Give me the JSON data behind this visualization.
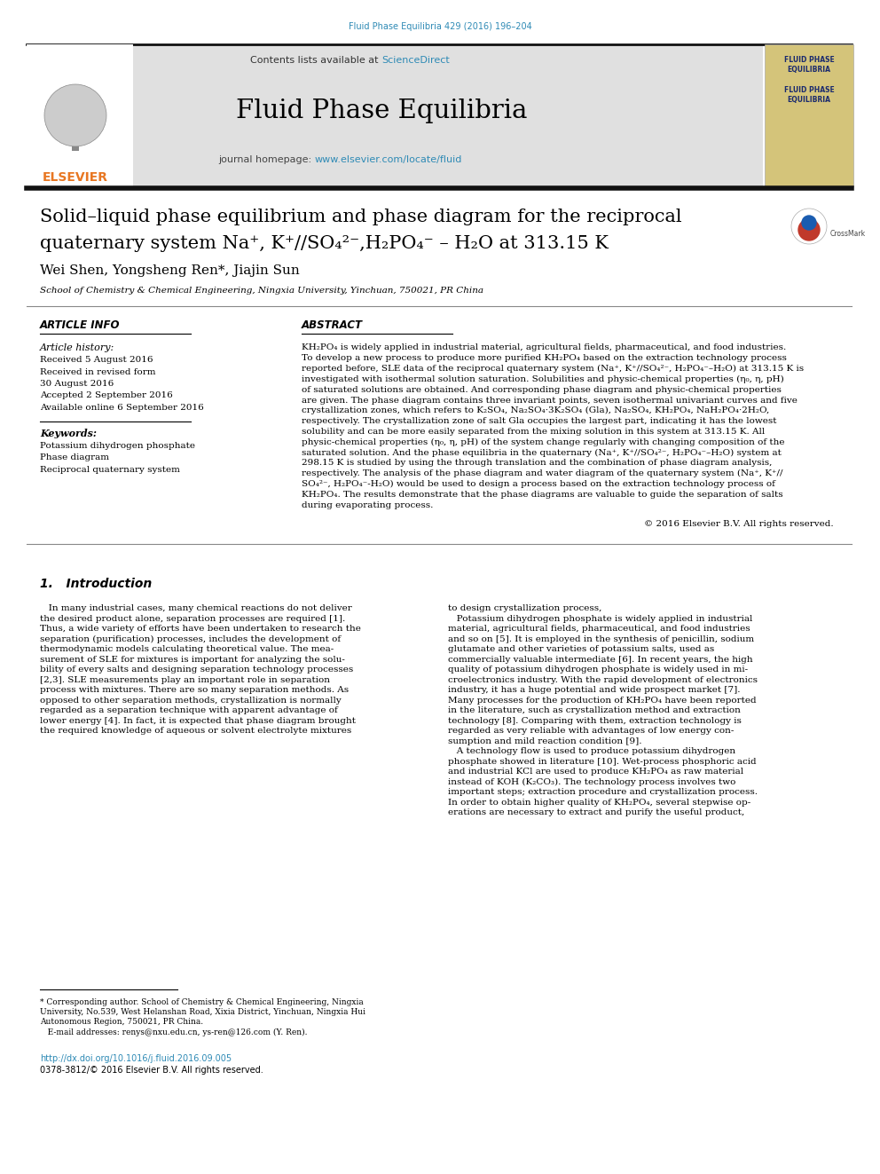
{
  "page_bg": "#ffffff",
  "header_citation": "Fluid Phase Equilibria 429 (2016) 196–204",
  "header_citation_color": "#2e8ab5",
  "journal_name": "Fluid Phase Equilibria",
  "homepage_url_color": "#2e8ab5",
  "sciencedirect_color": "#2e8ab5",
  "header_bg": "#e0e0e0",
  "elsevier_color": "#e87722",
  "right_logo_bg": "#d4c47a",
  "right_logo_border": "#aaaaaa",
  "right_logo_text_color": "#1a2a6e",
  "title_line1": "Solid–liquid phase equilibrium and phase diagram for the reciprocal",
  "title_line2": "quaternary system Na⁺, K⁺//SO₄²⁻,H₂PO₄⁻ – H₂O at 313.15 K",
  "authors": "Wei Shen, Yongsheng Ren*, Jiajin Sun",
  "affiliation": "School of Chemistry & Chemical Engineering, Ningxia University, Yinchuan, 750021, PR China",
  "article_info_header": "ARTICLE INFO",
  "abstract_header": "ABSTRACT",
  "article_history_label": "Article history:",
  "received1": "Received 5 August 2016",
  "received2": "Received in revised form",
  "received2b": "30 August 2016",
  "accepted": "Accepted 2 September 2016",
  "available": "Available online 6 September 2016",
  "keywords_label": "Keywords:",
  "keyword1": "Potassium dihydrogen phosphate",
  "keyword2": "Phase diagram",
  "keyword3": "Reciprocal quaternary system",
  "copyright_text": "© 2016 Elsevier B.V. All rights reserved.",
  "intro_heading": "1.   Introduction",
  "doi_text": "http://dx.doi.org/10.1016/j.fluid.2016.09.005",
  "issn_text": "0378-3812/© 2016 Elsevier B.V. All rights reserved.",
  "doi_color": "#2e8ab5",
  "separator_color": "#1a1a1a",
  "text_color": "#000000",
  "abstract_lines": [
    "KH₂PO₄ is widely applied in industrial material, agricultural fields, pharmaceutical, and food industries.",
    "To develop a new process to produce more purified KH₂PO₄ based on the extraction technology process",
    "reported before, SLE data of the reciprocal quaternary system (Na⁺, K⁺//SO₄²⁻, H₂PO₄⁻–H₂O) at 313.15 K is",
    "investigated with isothermal solution saturation. Solubilities and physic-chemical properties (η₀, η, pH)",
    "of saturated solutions are obtained. And corresponding phase diagram and physic-chemical properties",
    "are given. The phase diagram contains three invariant points, seven isothermal univariant curves and five",
    "crystallization zones, which refers to K₂SO₄, Na₂SO₄·3K₂SO₄ (Gla), Na₂SO₄, KH₂PO₄, NaH₂PO₄·2H₂O,",
    "respectively. The crystallization zone of salt Gla occupies the largest part, indicating it has the lowest",
    "solubility and can be more easily separated from the mixing solution in this system at 313.15 K. All",
    "physic-chemical properties (η₀, η, pH) of the system change regularly with changing composition of the",
    "saturated solution. And the phase equilibria in the quaternary (Na⁺, K⁺//SO₄²⁻, H₂PO₄⁻–H₂O) system at",
    "298.15 K is studied by using the through translation and the combination of phase diagram analysis,",
    "respectively. The analysis of the phase diagram and water diagram of the quaternary system (Na⁺, K⁺//",
    "SO₄²⁻, H₂PO₄⁻-H₂O) would be used to design a process based on the extraction technology process of",
    "KH₂PO₄. The results demonstrate that the phase diagrams are valuable to guide the separation of salts",
    "during evaporating process."
  ],
  "intro_col1": [
    "   In many industrial cases, many chemical reactions do not deliver",
    "the desired product alone, separation processes are required [1].",
    "Thus, a wide variety of efforts have been undertaken to research the",
    "separation (purification) processes, includes the development of",
    "thermodynamic models calculating theoretical value. The mea-",
    "surement of SLE for mixtures is important for analyzing the solu-",
    "bility of every salts and designing separation technology processes",
    "[2,3]. SLE measurements play an important role in separation",
    "process with mixtures. There are so many separation methods. As",
    "opposed to other separation methods, crystallization is normally",
    "regarded as a separation technique with apparent advantage of",
    "lower energy [4]. In fact, it is expected that phase diagram brought",
    "the required knowledge of aqueous or solvent electrolyte mixtures"
  ],
  "intro_col2": [
    "to design crystallization process,",
    "   Potassium dihydrogen phosphate is widely applied in industrial",
    "material, agricultural fields, pharmaceutical, and food industries",
    "and so on [5]. It is employed in the synthesis of penicillin, sodium",
    "glutamate and other varieties of potassium salts, used as",
    "commercially valuable intermediate [6]. In recent years, the high",
    "quality of potassium dihydrogen phosphate is widely used in mi-",
    "croelectronics industry. With the rapid development of electronics",
    "industry, it has a huge potential and wide prospect market [7].",
    "Many processes for the production of KH₂PO₄ have been reported",
    "in the literature, such as crystallization method and extraction",
    "technology [8]. Comparing with them, extraction technology is",
    "regarded as very reliable with advantages of low energy con-",
    "sumption and mild reaction condition [9].",
    "   A technology flow is used to produce potassium dihydrogen",
    "phosphate showed in literature [10]. Wet-process phosphoric acid",
    "and industrial KCl are used to produce KH₂PO₄ as raw material",
    "instead of KOH (K₂CO₃). The technology process involves two",
    "important steps; extraction procedure and crystallization process.",
    "In order to obtain higher quality of KH₂PO₄, several stepwise op-",
    "erations are necessary to extract and purify the useful product,"
  ],
  "footnote_lines": [
    "* Corresponding author. School of Chemistry & Chemical Engineering, Ningxia",
    "University, No.539, West Helanshan Road, Xixia District, Yinchuan, Ningxia Hui",
    "Autonomous Region, 750021, PR China.",
    "   E-mail addresses: renys@nxu.edu.cn, ys-ren@126.com (Y. Ren)."
  ]
}
